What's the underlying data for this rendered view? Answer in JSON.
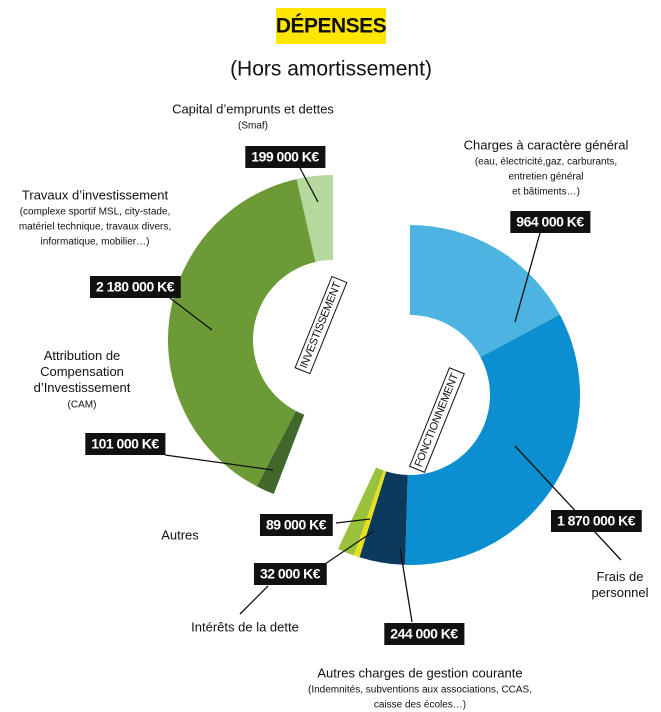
{
  "chart_data": {
    "type": "half-donut",
    "title": "DÉPENSES",
    "subtitle": "(Hors amortissement)",
    "groups": [
      {
        "label": "INVESTISSEMENT",
        "categories": [
          "Capital d’emprunts et dettes",
          "Travaux d’investissement",
          "Attribution de Compensation d’Investissement"
        ],
        "details": [
          [
            "(Smaf)"
          ],
          [
            "(complexe sportif MSL, city-stade,",
            "matériel technique, travaux divers,",
            "informatique, mobilier…)"
          ],
          [
            "(CAM)"
          ]
        ],
        "values": [
          199000,
          2180000,
          101000
        ],
        "value_labels": [
          "199 000 K€",
          "2 180 000 K€",
          "101 000 K€"
        ],
        "colors": [
          "#b5d99c",
          "#6b9a36",
          "#41682a"
        ]
      },
      {
        "label": "FONCTIONNEMENT",
        "categories": [
          "Charges à caractère général",
          "Frais de personnel",
          "Autres charges de gestion courante",
          "Intérêts de la dette",
          "Autres"
        ],
        "details": [
          [
            "(eau, électricité,gaz, carburants,",
            "entretien général",
            "et bâtiments…)"
          ],
          [],
          [
            "(Indemnités, subventions aux associations, CCAS,",
            "caisse des écoles…)"
          ],
          [],
          []
        ],
        "values": [
          964000,
          1870000,
          244000,
          32000,
          89000
        ],
        "value_labels": [
          "964 000 K€",
          "1 870 000 K€",
          "244 000 K€",
          "32 000 K€",
          "89 000 K€"
        ],
        "colors": [
          "#4db3e0",
          "#0b8fd0",
          "#0d3a5c",
          "#e6e020",
          "#9bc23c"
        ]
      }
    ]
  }
}
